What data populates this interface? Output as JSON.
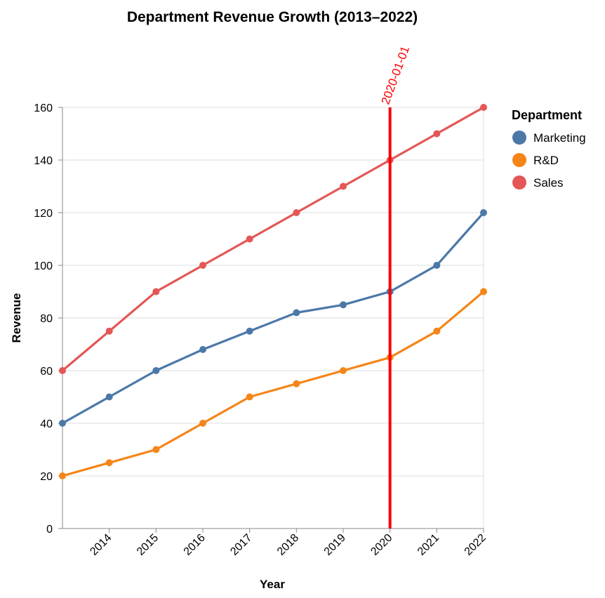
{
  "chart_data": {
    "type": "line",
    "title": "Department Revenue Growth (2013–2022)",
    "xlabel": "Year",
    "ylabel": "Revenue",
    "x": [
      2013,
      2014,
      2015,
      2016,
      2017,
      2018,
      2019,
      2020,
      2021,
      2022
    ],
    "x_tick_labels": [
      "2014",
      "2015",
      "2016",
      "2017",
      "2018",
      "2019",
      "2020",
      "2021",
      "2022"
    ],
    "ylim": [
      0,
      160
    ],
    "y_ticks": [
      0,
      20,
      40,
      60,
      80,
      100,
      120,
      140,
      160
    ],
    "grid": "y-major and right-edge",
    "legend": {
      "title": "Department",
      "placement": "top-right outside"
    },
    "series": [
      {
        "name": "Marketing",
        "color": "#4c78a8",
        "values": [
          40,
          50,
          60,
          68,
          75,
          82,
          85,
          90,
          100,
          120
        ]
      },
      {
        "name": "R&D",
        "color": "#f58518",
        "values": [
          20,
          25,
          30,
          40,
          50,
          55,
          60,
          65,
          75,
          90
        ]
      },
      {
        "name": "Sales",
        "color": "#e45756",
        "values": [
          60,
          75,
          90,
          100,
          110,
          120,
          130,
          140,
          150,
          160
        ]
      }
    ],
    "annotations": [
      {
        "type": "vertical-rule",
        "x": 2020,
        "label": "2020-01-01",
        "color": "#ff0000"
      }
    ]
  }
}
